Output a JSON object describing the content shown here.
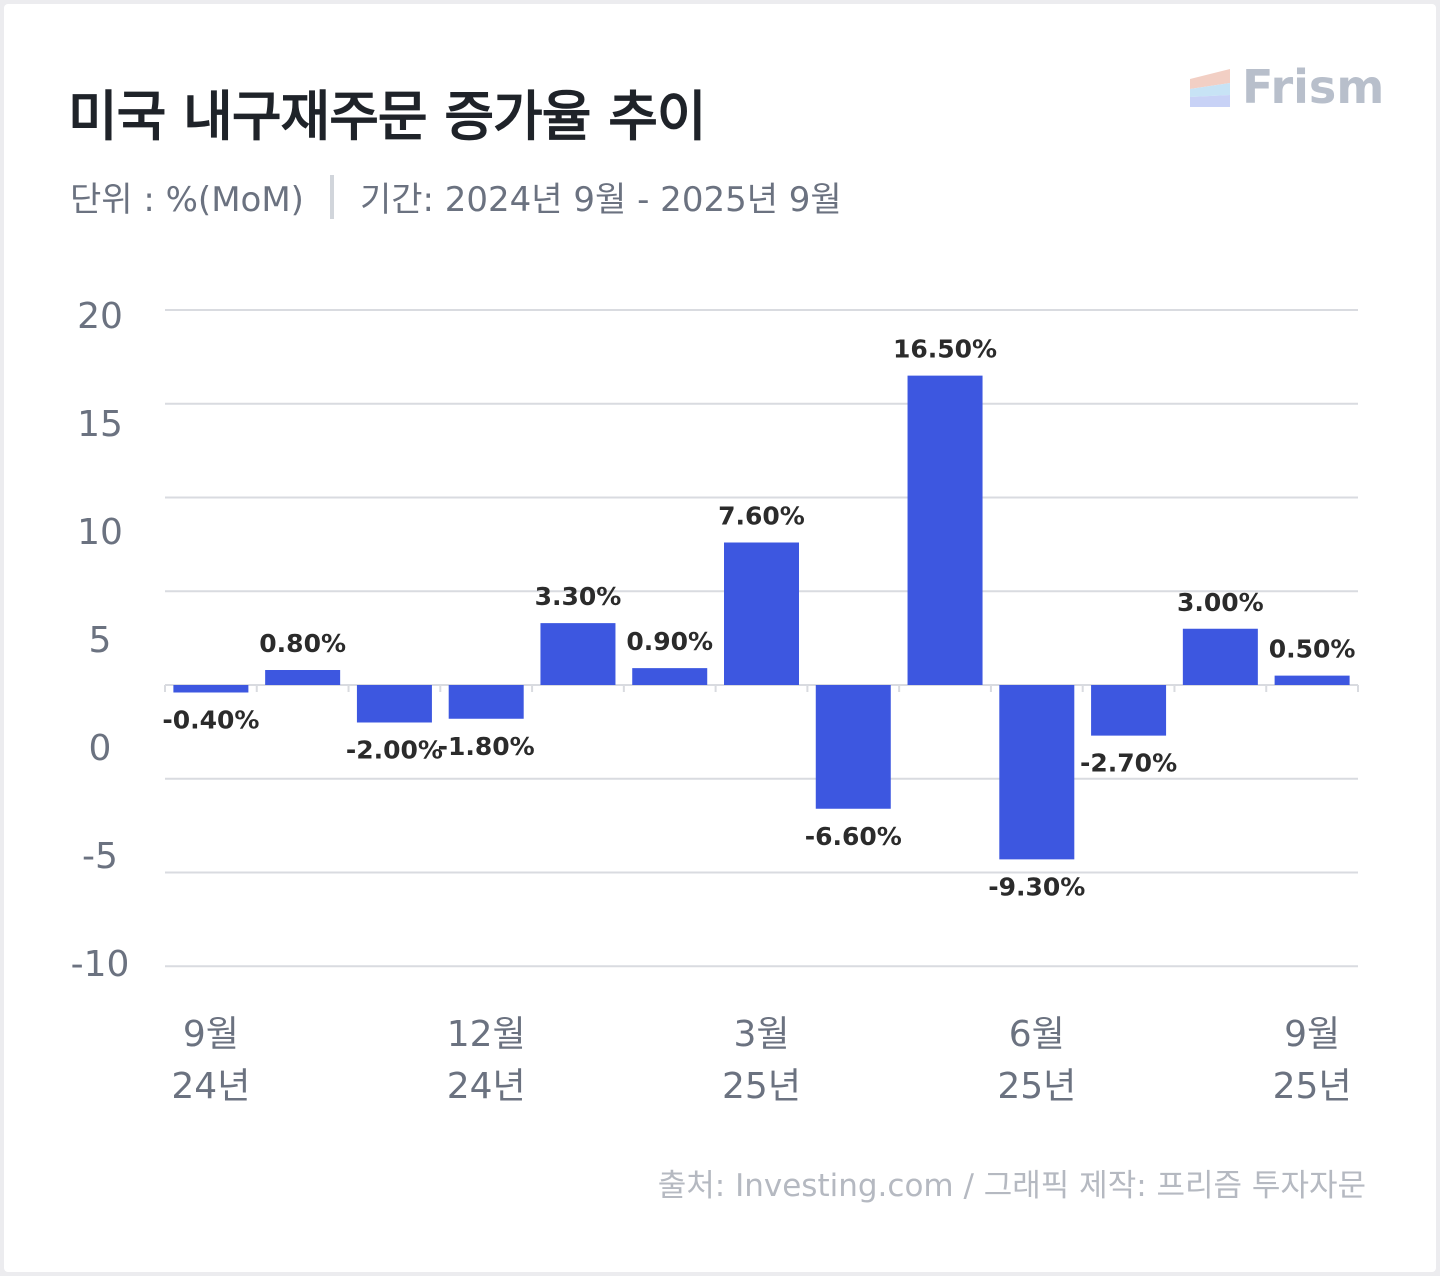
{
  "header": {
    "title": "미국 내구재주문 증가율 추이",
    "unit": "단위 : %(MoM)",
    "period": "기간: 2024년 9월 - 2025년 9월",
    "logo_text": "Frism"
  },
  "footer": {
    "source": "출처: Investing.com / 그래픽 제작: 프리즘 투자자문"
  },
  "colors": {
    "bar": "#3d57e0",
    "grid": "#d9dbe0",
    "axis_label": "#6b7280",
    "data_label": "#2b2b2b"
  },
  "chart_data": {
    "type": "bar",
    "title": "미국 내구재주문 증가율 추이",
    "xlabel": "",
    "ylabel": "%(MoM)",
    "months": [
      "2024-09",
      "2024-10",
      "2024-11",
      "2024-12",
      "2025-01",
      "2025-02",
      "2025-03",
      "2025-04",
      "2025-05",
      "2025-06",
      "2025-07",
      "2025-08",
      "2025-09"
    ],
    "values": [
      -0.4,
      0.8,
      -2.0,
      -1.8,
      3.3,
      0.9,
      7.6,
      -6.6,
      16.5,
      -9.3,
      -2.7,
      3.0,
      0.5
    ],
    "data_labels": [
      "-0.40%",
      "0.80%",
      "-2.00%",
      "-1.80%",
      "3.30%",
      "0.90%",
      "7.60%",
      "-6.60%",
      "16.50%",
      "-9.30%",
      "-2.70%",
      "3.00%",
      "0.50%"
    ],
    "y_tick_labels": [
      "20",
      "15",
      "10",
      "5",
      "0",
      "-5",
      "-10"
    ],
    "gridlines": [
      20,
      15,
      10,
      5,
      0,
      -5,
      -10,
      -15
    ],
    "ylim": [
      -15,
      20
    ],
    "x_ticks": [
      {
        "index": 0,
        "month": "9월",
        "year": "24년"
      },
      {
        "index": 3,
        "month": "12월",
        "year": "24년"
      },
      {
        "index": 6,
        "month": "3월",
        "year": "25년"
      },
      {
        "index": 9,
        "month": "6월",
        "year": "25년"
      },
      {
        "index": 12,
        "month": "9월",
        "year": "25년"
      }
    ],
    "grid": true,
    "legend": "none"
  }
}
